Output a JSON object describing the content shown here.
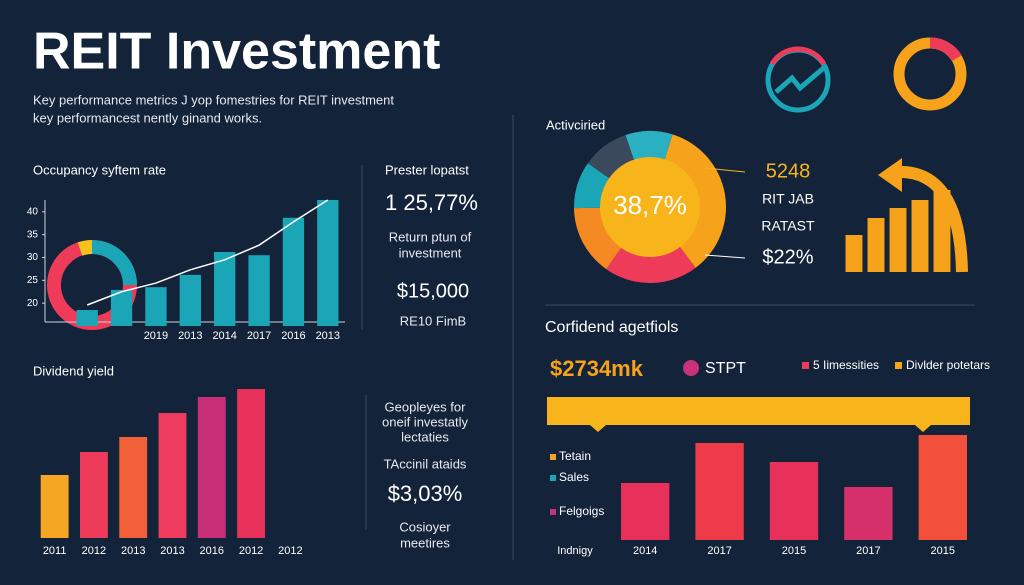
{
  "header": {
    "title": "REIT Investment",
    "subtitle": [
      "Key performance metrics J yop fomestries for REIT investment",
      "key performancest nently ginand works."
    ]
  },
  "panels": {
    "stat_top": {
      "title": "Prester lopatst",
      "value": "1 25,77%",
      "caption": [
        "Return ptun of",
        "investment"
      ],
      "amount": "$15,000",
      "note": "RE10 FimB"
    },
    "stat_bottom": {
      "caption": [
        "Geopleyes for",
        "oneif investatly",
        "lectaties"
      ],
      "label": "TAccinil ataids",
      "value": "$3,03%",
      "note": [
        "Cosioyer",
        "meetires"
      ]
    },
    "confidence": {
      "amount": "$2734mk",
      "tag": "STPT",
      "legend": [
        "5 Iimessities",
        "Divlder potetars"
      ],
      "legend_colors": [
        "#ef3b5a",
        "#f7a21b"
      ]
    }
  },
  "chart_data": [
    {
      "type": "bar",
      "title": "Occupancy syftem rate",
      "categories": [
        null,
        null,
        "2019",
        "2013",
        "2014",
        "2017",
        "2016",
        "2013"
      ],
      "series": [
        {
          "type": "bar",
          "color": "#1aa6b7",
          "values": [
            18.5,
            22.9,
            23.5,
            26.2,
            31.2,
            30.5,
            38.7,
            42.6
          ]
        },
        {
          "type": "line",
          "color": "#ffffff",
          "values": [
            19.6,
            22.5,
            24.4,
            27.3,
            29.5,
            32.7,
            37.8,
            42.6
          ]
        }
      ],
      "ylim": [
        15,
        45
      ],
      "yticks": [
        20,
        25,
        30,
        35,
        40
      ]
    },
    {
      "type": "bar",
      "title": "Dividend yield",
      "categories": [
        "2011",
        "2012",
        "2013",
        "2013",
        "2016",
        "2012",
        "2012"
      ],
      "values": [
        63,
        86,
        101,
        125,
        141,
        149,
        null
      ],
      "colors": [
        "#f5a623",
        "#ee3b5a",
        "#f2603a",
        "#ee3b5e",
        "#c72f78",
        "#e8315a",
        "#e8315a"
      ],
      "ylim": [
        0,
        160
      ]
    },
    {
      "type": "pie",
      "title": "Activciried",
      "center_label": "38,7%",
      "values": [
        35,
        20,
        15,
        10,
        10,
        10
      ],
      "colors": [
        "#f7a21b",
        "#ef3b5a",
        "#f58a23",
        "#1aa6b7",
        "#3a4a5c",
        "#2ab0c0"
      ],
      "annotations": [
        "5248",
        "RIT JAB",
        "RATAST",
        "$22%"
      ]
    },
    {
      "type": "bar",
      "values": [
        37,
        54,
        64,
        72,
        82
      ],
      "color": "#f7a21b",
      "ylim": [
        0,
        90
      ]
    },
    {
      "type": "bar",
      "title": "Corfidend agetfiols",
      "x_label": "Indnigy",
      "categories": [
        "2014",
        "2017",
        "2015",
        "2017",
        "2015"
      ],
      "values": [
        57,
        97,
        78,
        53,
        105
      ],
      "colors": [
        "#e8315a",
        "#ee3b4a",
        "#e8315a",
        "#d6306a",
        "#f2503a"
      ],
      "ylim": [
        0,
        115
      ],
      "legend": [
        "Tetain",
        "Sales",
        "Felgoigs"
      ],
      "legend_colors": [
        "#f7a21b",
        "#1aa6b7",
        "#c8327a"
      ]
    }
  ]
}
